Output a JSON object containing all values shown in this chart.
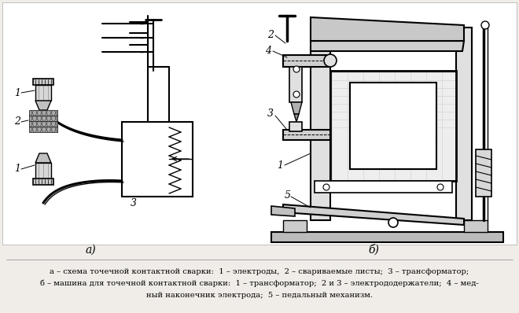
{
  "figure_width": 6.6,
  "figure_height": 3.98,
  "dpi": 100,
  "background_color": "#f0ede8",
  "label_a": "а)",
  "label_b": "б)",
  "caption_lines": [
    "а – схема точечной контактной сварки:  1 – электроды,  2 – свариваемые листы;  3 – трансформатор;",
    "б – машина для точечной контактной сварки:  1 – трансформатор;  2 и 3 – электрододержатели;  4 – мед-",
    "ный наконечник электрода;  5 – педальный механизм."
  ],
  "caption_fontsize": 7.2,
  "label_fontsize": 10
}
